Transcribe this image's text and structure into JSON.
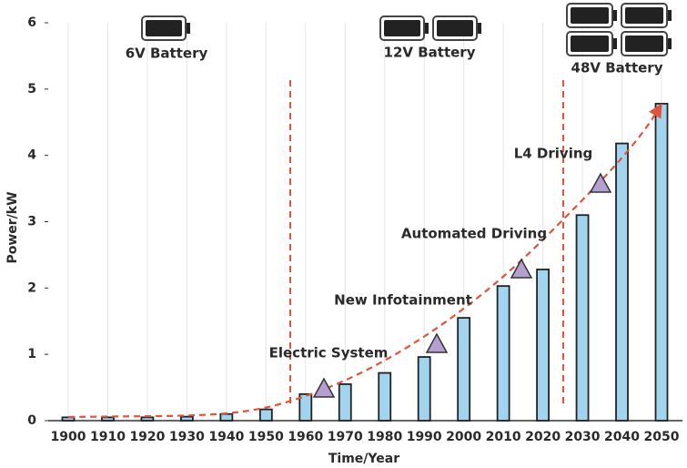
{
  "chart_data": {
    "type": "bar",
    "x_label": "Time/Year",
    "y_label": "Power/kW",
    "categories": [
      "1900",
      "1910",
      "1920",
      "1930",
      "1940",
      "1950",
      "1960",
      "1970",
      "1980",
      "1990",
      "2000",
      "2010",
      "2020",
      "2030",
      "2040",
      "2050"
    ],
    "values": [
      0.05,
      0.05,
      0.05,
      0.06,
      0.1,
      0.17,
      0.4,
      0.55,
      0.72,
      0.96,
      1.55,
      2.03,
      2.28,
      3.1,
      4.18,
      4.78
    ],
    "color": "#a3d4ef",
    "ylim": [
      0,
      6
    ],
    "yticks": [
      0,
      1,
      2,
      3,
      4,
      5,
      6
    ],
    "grid": true,
    "annotations": [
      "6V Battery",
      "12V Battery",
      "48V Battery",
      "Electric System",
      "New Infotainment",
      "Automated Driving",
      "L4 Driving"
    ]
  }
}
